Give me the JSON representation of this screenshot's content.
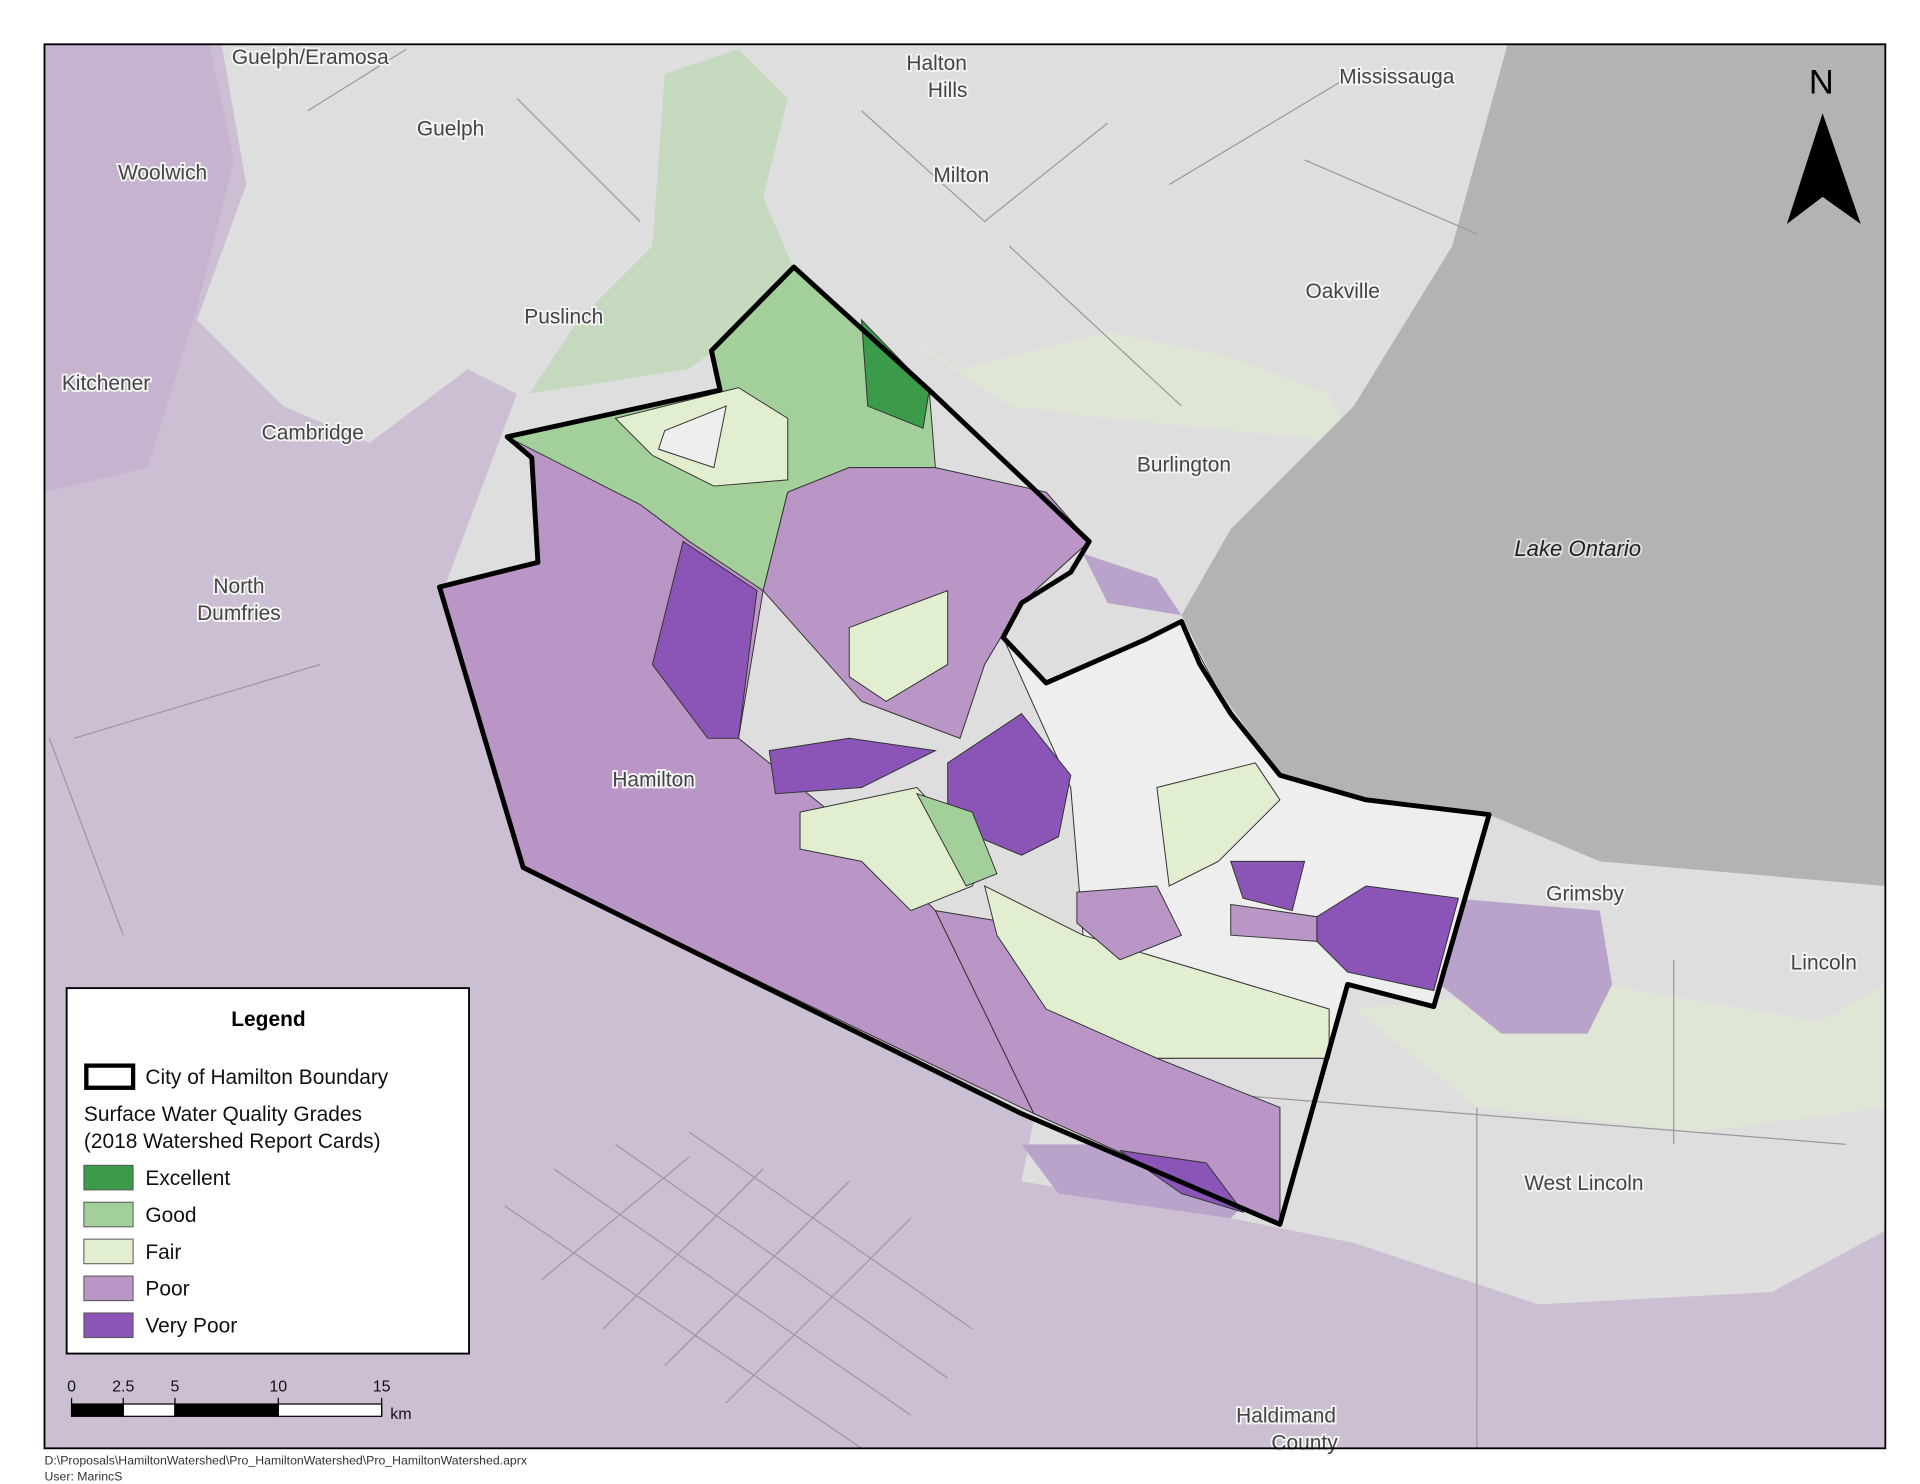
{
  "map": {
    "north_label": "N",
    "lake_label": "Lake Ontario",
    "places": [
      "Guelph/Eramosa",
      [
        "Halton",
        "Hills"
      ],
      "Mississauga",
      "Guelph",
      "Woolwich",
      "Milton",
      "Oakville",
      "Puslinch",
      "Kitchener",
      "Cambridge",
      "Burlington",
      [
        "North",
        "Dumfries"
      ],
      "Hamilton",
      "Grimsby",
      "Lincoln",
      "West Lincoln",
      [
        "Haldimand",
        "County"
      ]
    ]
  },
  "legend": {
    "title": "Legend",
    "boundary": "City of Hamilton Boundary",
    "grades_title": "Surface Water Quality Grades",
    "grades_subtitle": "(2018 Watershed Report Cards)",
    "items": [
      {
        "label": "Excellent",
        "color": "#3c9a4b"
      },
      {
        "label": "Good",
        "color": "#a3cf9b"
      },
      {
        "label": "Fair",
        "color": "#e1eecf"
      },
      {
        "label": "Poor",
        "color": "#b996c6"
      },
      {
        "label": "Very Poor",
        "color": "#8a55b6"
      }
    ]
  },
  "scale_bar": {
    "ticks": [
      0,
      2.5,
      5,
      10,
      15
    ],
    "unit": "km"
  },
  "footer": {
    "path": "D:\\Proposals\\HamiltonWatershed\\Pro_HamiltonWatershed\\Pro_HamiltonWatershed.aprx",
    "user": "User: MarincS"
  }
}
